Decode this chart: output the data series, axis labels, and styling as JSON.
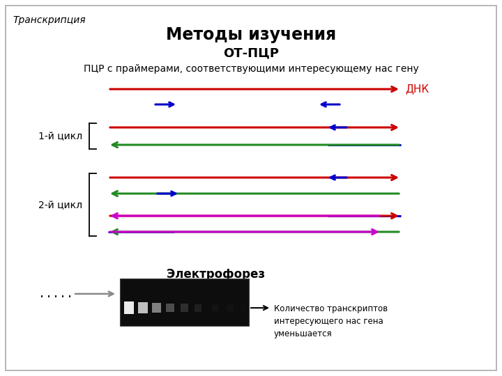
{
  "title": "Методы изучения",
  "subtitle": "ОТ-ПЦР",
  "description": "ПЦР с праймерами, соответствующими интересующему нас гену",
  "corner_text": "Транскрипция",
  "dnk_label": "ДНК",
  "cycle1_label": "1-й цикл",
  "cycle2_label": "2-й цикл",
  "electrophoresis_label": "Электрофорез",
  "dots_text": ".....",
  "annotation_text": "Количество транскриптов\nинтересующего нас гена\nуменьшается",
  "bg_color": "#ffffff",
  "border_color": "#aaaaaa",
  "red": "#cc0000",
  "green": "#228B22",
  "blue": "#0000cc",
  "magenta": "#cc00cc",
  "gray": "#888888"
}
